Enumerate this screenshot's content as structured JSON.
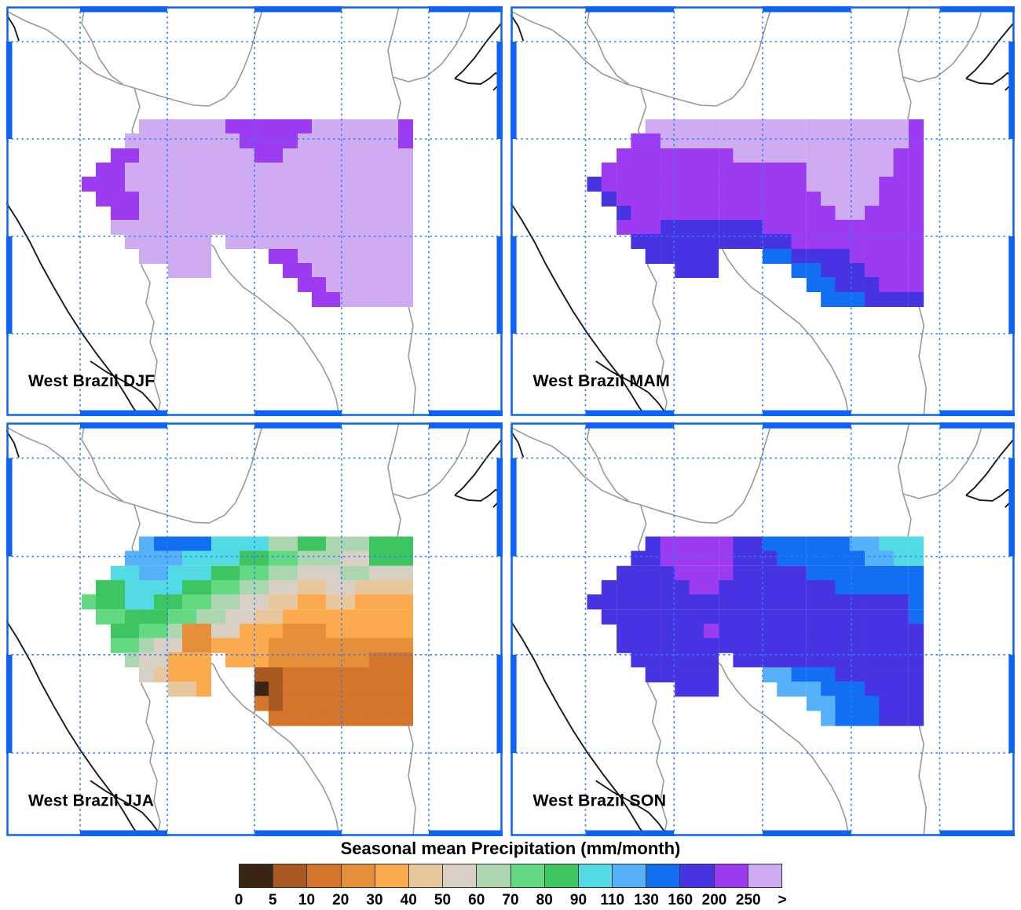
{
  "chart_data": {
    "type": "heatmap",
    "title": "Seasonal mean Precipitation (mm/month)",
    "units": "mm/month",
    "legend_position": "bottom",
    "gridlines": "dotted blue lat-lon graticule over maps",
    "panels": [
      {
        "label": "West Brazil DJF",
        "grid": [
          "....ppppppooooooppppppo",
          "...ppppppppoooopppppppo",
          "..ooppppppppooppppppppp",
          ".oopppppppppppppppppppp",
          "ooopppppppppppppppppppp",
          ".oooppppppppppppppppppp",
          "..ooppppppppppppppppppp",
          "..ppppppppppppppppppppp",
          "...pppppp.ppppppppppppp",
          "....ppppp....oopppppppp",
          "......ppp.....ooppppppp",
          "...............oopppppp",
          "................ooppppp"
        ]
      },
      {
        "label": "West Brazil MAM",
        "grid": [
          "....ppppppppppppppppppo",
          "...oopppppppppppppppppo",
          "..oooooooopppppppppppoo",
          ".ooooooooooooooppppppoo",
          "noooooooooooooopppppooo",
          ".nooooooooooooooppppooo",
          "..nooooooooooooooppoooo",
          "..ooonnnnnnnooooooooooo",
          "...nnnnnnnnnnnooooooooo",
          "....nnnnn...mmnnnnooooo",
          "......nnn.....mmnnnoooo",
          "...............mmnnnooo",
          "................mmmnnnn"
        ]
      },
      {
        "label": "West Brazil JJA",
        "grid": [
          "....lmmmmkkkkhhjjhhhjjj",
          "...llllkkkkjjiihhhggjjj",
          "..kkllkkkjjiihhggghhggg",
          ".jjkkkkjjiihhggffggffff",
          "ijjkkjjiihhggffeeffeeee",
          ".iijjjiihhggffeeeeeeeee",
          "..jjiihddggeeedddeeeeee",
          "..iihggddeeeedddddddddd",
          "...hggeee.eeedddddddccc",
          "....gfeee...bbccccccccc",
          "......ffe...abccccccccc",
          "............cbccccccccc",
          ".............cccccccccc"
        ]
      },
      {
        "label": "West Brazil SON",
        "grid": [
          "....nooooonnmmmmmmllkkk",
          "...nnooooonnnmmmmmmllkk",
          "..nnnnoooonnnnnmmmmmmmm",
          ".nnnnnnoonnnnnnnnmmmmmm",
          "nnnnnnnnnnnnnnnnnnnnnnm",
          ".nnnnnnnnnnnnnnnnnnnnnm",
          "..nnnnnnonnnnnnnnnnnnnn",
          "..nnnnnnnnnnnnnnnnnnnnn",
          "...nnnnnn.nnnnnnnnnnnnn",
          "....nnnnn...llmmmnnnnnn",
          "......nnn....lllmmmnnnn",
          "...............llmmmnnn",
          "................lmmmnnn"
        ]
      }
    ],
    "grid_encoding": {
      "no_data": ".",
      "bins_mm_per_month": {
        "a": "0-5",
        "b": "5-10",
        "c": "10-20",
        "d": "20-30",
        "e": "30-40",
        "f": "40-50",
        "g": "50-60",
        "h": "60-70",
        "i": "70-80",
        "j": "80-90",
        "k": "90-110",
        "l": "110-130",
        "m": "130-160",
        "n": "160-200",
        "o": "200-250",
        "p": ">250"
      }
    },
    "bin_colors": {
      "a": "#3a2512",
      "b": "#a85a22",
      "c": "#d3752a",
      "d": "#e59038",
      "e": "#fbab4e",
      "f": "#e9c79d",
      "g": "#d9d0c5",
      "h": "#abd6b0",
      "i": "#63da82",
      "j": "#3cc560",
      "k": "#52dbe4",
      "l": "#56b1f8",
      "m": "#126ff2",
      "n": "#4634e2",
      "o": "#9d3bf2",
      "p": "#cfacf1"
    },
    "colorbar": {
      "title": "Seasonal mean Precipitation (mm/month)",
      "tick_labels": [
        "0",
        "5",
        "10",
        "20",
        "30",
        "40",
        "50",
        "60",
        "70",
        "80",
        "90",
        "110",
        "130",
        "160",
        "200",
        "250",
        ">"
      ],
      "colors": [
        "#3a2512",
        "#a85a22",
        "#d3752a",
        "#e59038",
        "#fbab4e",
        "#e9c79d",
        "#d9d0c5",
        "#abd6b0",
        "#63da82",
        "#3cc560",
        "#52dbe4",
        "#56b1f8",
        "#126ff2",
        "#4634e2",
        "#9d3bf2",
        "#cfacf1"
      ]
    },
    "style": {
      "frame_color": "#0d63f5",
      "graticule_color": "#2e7bff",
      "coastline_color": "#1a1a1a",
      "state_border_color": "#9a9a9a"
    }
  }
}
